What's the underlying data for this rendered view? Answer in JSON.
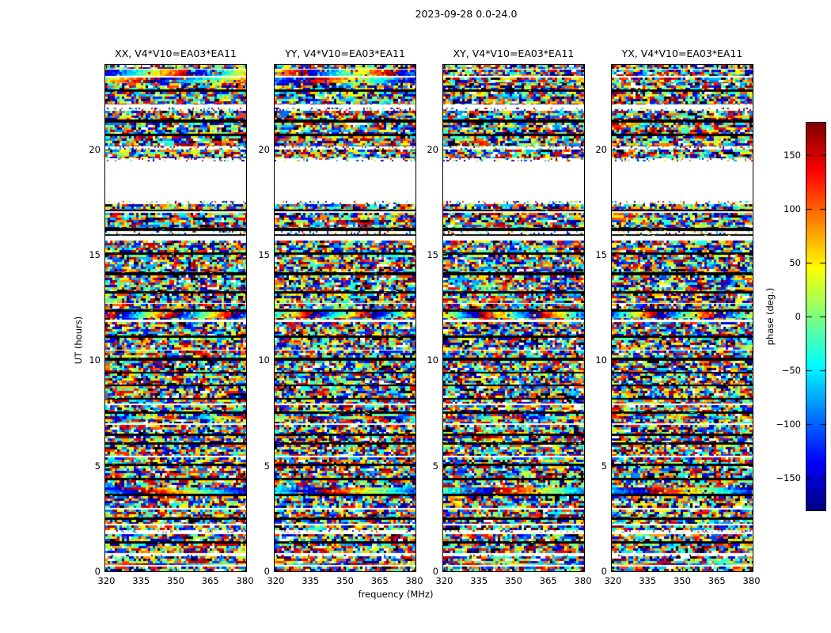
{
  "chart_data": {
    "type": "heatmap",
    "title": "2023-09-28 0.0-24.0",
    "xlabel": "frequency (MHz)",
    "ylabel": "UT (hours)",
    "x_range": [
      319.5,
      380.5
    ],
    "x_ticks": [
      320,
      335,
      350,
      365,
      380
    ],
    "y_range": [
      0,
      24
    ],
    "y_ticks": [
      0,
      5,
      10,
      15,
      20
    ],
    "colormap": "jet",
    "grid": false,
    "panels": [
      {
        "title": "XX, V4*V10=EA03*EA11",
        "pol": "XX",
        "seed": 101
      },
      {
        "title": "YY, V4*V10=EA03*EA11",
        "pol": "YY",
        "seed": 202
      },
      {
        "title": "XY, V4*V10=EA03*EA11",
        "pol": "XY",
        "seed": 303
      },
      {
        "title": "YX, V4*V10=EA03*EA11",
        "pol": "YX",
        "seed": 404
      }
    ],
    "colorbar": {
      "label": "phase (deg.)",
      "min": -180,
      "max": 180,
      "ticks": [
        -150,
        -100,
        -50,
        0,
        50,
        100,
        150
      ],
      "top_color": "#7f0000",
      "bottom_color": "#00007f"
    },
    "bands": [
      [
        24.0,
        23.82,
        "noise"
      ],
      [
        23.82,
        23.76,
        "white"
      ],
      [
        23.76,
        23.46,
        "sweep-par",
        1.6
      ],
      [
        23.46,
        23.4,
        "white"
      ],
      [
        23.4,
        23.12,
        "sweep-par",
        1.2
      ],
      [
        23.12,
        22.84,
        "noise"
      ],
      [
        22.84,
        22.73,
        "black"
      ],
      [
        22.73,
        22.14,
        "noise"
      ],
      [
        22.14,
        21.96,
        "white"
      ],
      [
        21.96,
        21.84,
        "sparse"
      ],
      [
        21.84,
        21.4,
        "noise"
      ],
      [
        21.4,
        21.28,
        "black"
      ],
      [
        21.28,
        20.73,
        "noise"
      ],
      [
        20.73,
        20.62,
        "black"
      ],
      [
        20.62,
        20.14,
        "noise"
      ],
      [
        20.14,
        20.0,
        "sparse"
      ],
      [
        20.0,
        19.56,
        "noise"
      ],
      [
        19.56,
        19.44,
        "sparse"
      ],
      [
        19.44,
        17.56,
        "white"
      ],
      [
        17.56,
        17.4,
        "sparse"
      ],
      [
        17.4,
        17.13,
        "noise"
      ],
      [
        17.13,
        17.06,
        "black"
      ],
      [
        17.06,
        16.99,
        "white"
      ],
      [
        16.99,
        16.26,
        "noise"
      ],
      [
        16.26,
        16.13,
        "black"
      ],
      [
        16.13,
        15.96,
        "sparse"
      ],
      [
        15.96,
        15.89,
        "black"
      ],
      [
        15.89,
        15.66,
        "white"
      ],
      [
        15.66,
        15.13,
        "noise"
      ],
      [
        15.13,
        15.0,
        "black"
      ],
      [
        15.0,
        14.16,
        "noise"
      ],
      [
        14.16,
        14.04,
        "black"
      ],
      [
        14.04,
        13.26,
        "noise"
      ],
      [
        13.26,
        13.15,
        "black"
      ],
      [
        13.15,
        12.73,
        "noise"
      ],
      [
        12.73,
        12.66,
        "white"
      ],
      [
        12.66,
        12.43,
        "noise"
      ],
      [
        12.43,
        12.31,
        "black"
      ],
      [
        12.31,
        12.0,
        "sweep",
        2.4
      ],
      [
        12.0,
        11.91,
        "noise"
      ],
      [
        11.91,
        11.81,
        "white"
      ],
      [
        11.81,
        11.16,
        "noise"
      ],
      [
        11.16,
        11.05,
        "black"
      ],
      [
        11.05,
        10.51,
        "noise"
      ],
      [
        10.51,
        10.45,
        "white"
      ],
      [
        10.45,
        10.13,
        "noise"
      ],
      [
        10.13,
        9.99,
        "black"
      ],
      [
        9.99,
        9.46,
        "noise"
      ],
      [
        9.46,
        9.36,
        "black"
      ],
      [
        9.36,
        8.86,
        "noise"
      ],
      [
        8.86,
        8.76,
        "black"
      ],
      [
        8.76,
        8.23,
        "noise"
      ],
      [
        8.23,
        8.13,
        "black"
      ],
      [
        8.13,
        7.96,
        "noise"
      ],
      [
        7.96,
        7.89,
        "white"
      ],
      [
        7.89,
        7.56,
        "noise"
      ],
      [
        7.56,
        7.46,
        "black"
      ],
      [
        7.46,
        7.36,
        "noise"
      ],
      [
        7.36,
        7.19,
        "sweep",
        2.0
      ],
      [
        7.19,
        7.01,
        "noise"
      ],
      [
        7.01,
        6.94,
        "white"
      ],
      [
        6.94,
        6.51,
        "noise"
      ],
      [
        6.51,
        6.41,
        "black"
      ],
      [
        6.41,
        6.13,
        "noise"
      ],
      [
        6.13,
        6.01,
        "black"
      ],
      [
        6.01,
        5.46,
        "noise"
      ],
      [
        5.46,
        5.39,
        "white"
      ],
      [
        5.39,
        5.11,
        "noise"
      ],
      [
        5.11,
        4.99,
        "black"
      ],
      [
        4.99,
        4.41,
        "noise"
      ],
      [
        4.41,
        4.31,
        "black"
      ],
      [
        4.31,
        3.96,
        "noise"
      ],
      [
        3.96,
        3.69,
        "sweep",
        1.2
      ],
      [
        3.69,
        3.57,
        "black"
      ],
      [
        3.57,
        3.01,
        "noise"
      ],
      [
        3.01,
        2.94,
        "white"
      ],
      [
        2.94,
        2.56,
        "noise"
      ],
      [
        2.56,
        2.45,
        "black"
      ],
      [
        2.45,
        2.26,
        "noise"
      ],
      [
        2.26,
        2.19,
        "white"
      ],
      [
        2.19,
        1.96,
        "noise"
      ],
      [
        1.96,
        1.83,
        "sparse"
      ],
      [
        1.83,
        1.76,
        "white"
      ],
      [
        1.76,
        1.41,
        "noise"
      ],
      [
        1.41,
        1.3,
        "black"
      ],
      [
        1.3,
        0.86,
        "noise"
      ],
      [
        0.86,
        0.79,
        "white"
      ],
      [
        0.79,
        0.73,
        "sparse"
      ],
      [
        0.73,
        0.36,
        "noise"
      ],
      [
        0.36,
        0.29,
        "sweep",
        1.0
      ],
      [
        0.29,
        0.23,
        "white"
      ],
      [
        0.23,
        0.0,
        "noise"
      ]
    ]
  }
}
